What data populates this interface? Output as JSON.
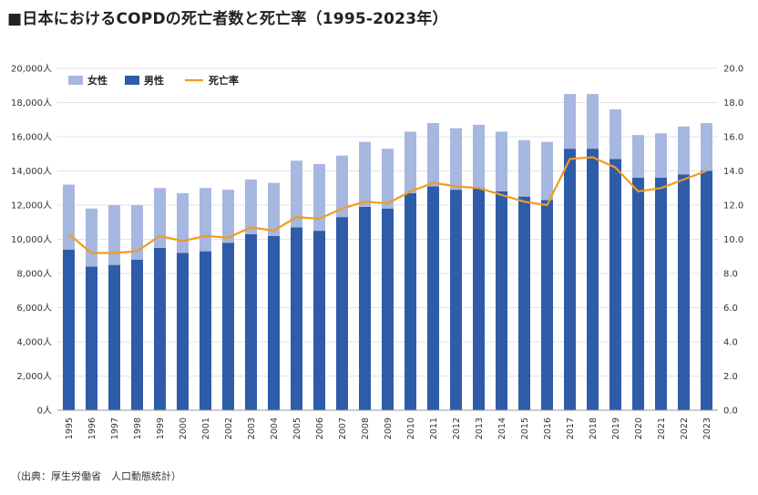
{
  "title": "■日本におけるCOPDの死亡者数と死亡率（1995-2023年）",
  "source": "（出典：厚生労働省　人口動態統計）",
  "colors": {
    "female": "#a6b7e0",
    "male": "#2e5ca8",
    "rate": "#f39a23",
    "grid": "#e3e3e3"
  },
  "chart_data": {
    "type": "bar",
    "stacked": true,
    "categories": [
      "1995",
      "1996",
      "1997",
      "1998",
      "1999",
      "2000",
      "2001",
      "2002",
      "2003",
      "2004",
      "2005",
      "2006",
      "2007",
      "2008",
      "2009",
      "2010",
      "2011",
      "2012",
      "2013",
      "2014",
      "2015",
      "2016",
      "2017",
      "2018",
      "2019",
      "2020",
      "2021",
      "2022",
      "2023"
    ],
    "series": [
      {
        "name": "女性",
        "type": "bar",
        "axis": "left",
        "values": [
          3800,
          3400,
          3500,
          3200,
          3500,
          3500,
          3700,
          3100,
          3200,
          3100,
          3900,
          3900,
          3600,
          3800,
          3500,
          3600,
          3700,
          3600,
          3700,
          3500,
          3300,
          3400,
          3200,
          3200,
          2900,
          2500,
          2600,
          2800,
          2800
        ]
      },
      {
        "name": "男性",
        "type": "bar",
        "axis": "left",
        "values": [
          9400,
          8400,
          8500,
          8800,
          9500,
          9200,
          9300,
          9800,
          10300,
          10200,
          10700,
          10500,
          11300,
          11900,
          11800,
          12700,
          13100,
          12900,
          13000,
          12800,
          12500,
          12300,
          15300,
          15300,
          14700,
          13600,
          13600,
          13800,
          14000
        ]
      },
      {
        "name": "死亡率",
        "type": "line",
        "axis": "right",
        "values": [
          10.3,
          9.2,
          9.2,
          9.3,
          10.2,
          9.9,
          10.2,
          10.1,
          10.7,
          10.5,
          11.3,
          11.2,
          11.8,
          12.2,
          12.1,
          12.8,
          13.3,
          13.1,
          13.0,
          12.6,
          12.2,
          12.0,
          14.7,
          14.8,
          14.2,
          12.8,
          13.0,
          13.5,
          14.0
        ]
      }
    ],
    "left_axis": {
      "min": 0,
      "max": 20000,
      "step": 2000,
      "suffix": "人"
    },
    "right_axis": {
      "min": 0,
      "max": 20,
      "step": 2
    },
    "grid": true,
    "legend_position": "top-left"
  }
}
